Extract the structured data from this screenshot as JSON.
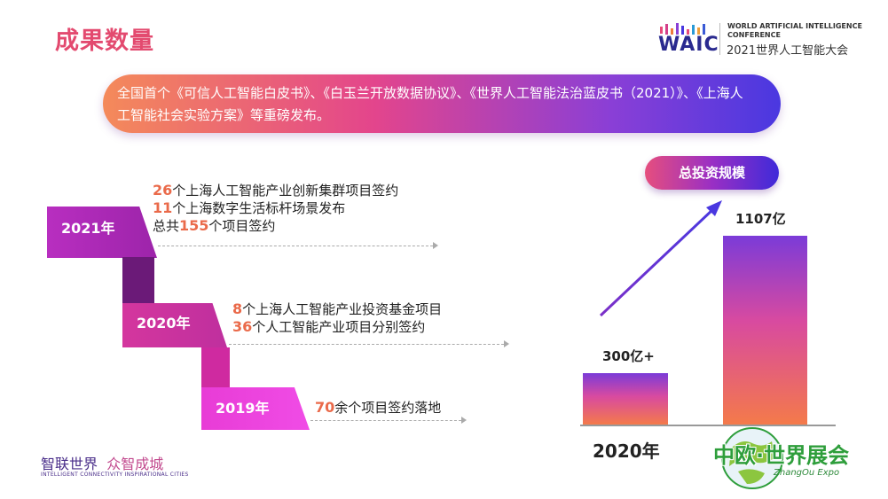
{
  "header": {
    "title": "成果数量",
    "logo_word": "WAIC",
    "logo_en_line1": "WORLD ARTIFICIAL INTELLIGENCE",
    "logo_en_line2": "CONFERENCE",
    "logo_cn": "2021世界人工智能大会"
  },
  "banner": {
    "text": "全国首个《可信人工智能白皮书》、《白玉兰开放数据协议》、《世界人工智能法治蓝皮书（2021）》、《上海人工智能社会实验方案》等重磅发布。"
  },
  "timeline": {
    "y2021": {
      "label": "2021年",
      "line1_num": "26",
      "line1_text": "个上海人工智能产业创新集群项目签约",
      "line2_num": "11",
      "line2_text": "个上海数字生活标杆场景发布",
      "line3_pre": "总共",
      "line3_num": "155",
      "line3_text": "个项目签约"
    },
    "y2020": {
      "label": "2020年",
      "line1_num": "8",
      "line1_text": "个上海人工智能产业投资基金项目",
      "line2_num": "36",
      "line2_text": "个人工智能产业项目分别签约"
    },
    "y2019": {
      "label": "2019年",
      "line1_num": "70",
      "line1_text": "余个项目签约落地"
    }
  },
  "chart_data": {
    "type": "bar",
    "title": "总投资规模",
    "categories": [
      "2020年",
      ""
    ],
    "values": [
      300,
      1107
    ],
    "value_labels": [
      "300亿+",
      "1107亿"
    ],
    "xlabel": "",
    "ylabel": "",
    "grid": false,
    "colors": [
      "#7b3bd8",
      "#d84aa0",
      "#f47a4a"
    ]
  },
  "footer": {
    "slogan_a": "智联世界",
    "slogan_b": "众智成城",
    "slogan_en": "INTELLIGENT CONNECTIVITY  INSPIRATIONAL CITIES",
    "expo_cn": "中欧·世界展会",
    "expo_en": "ZhangOu Expo"
  },
  "colors": {
    "accent": "#e34a6f",
    "number": "#ea6a4a",
    "purple": "#4a38e0"
  }
}
